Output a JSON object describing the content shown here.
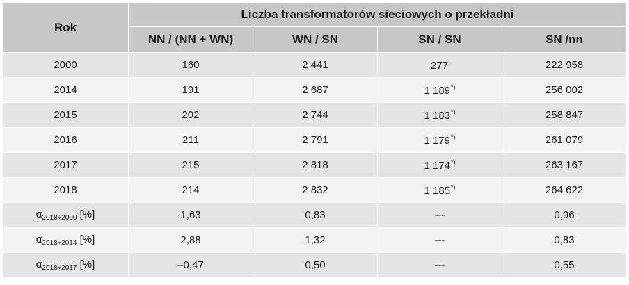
{
  "table": {
    "corner_label": "Rok",
    "group_title": "Liczba transformatorów sieciowych o przekładni",
    "columns": [
      "NN / (NN + WN)",
      "WN / SN",
      "SN / SN",
      "SN /nn"
    ],
    "rows": [
      {
        "year": "2000",
        "c1": "160",
        "c2": "2 441",
        "c3": "277",
        "c3_note": "",
        "c4": "222 958"
      },
      {
        "year": "2014",
        "c1": "191",
        "c2": "2 687",
        "c3": "1 189",
        "c3_note": "*)",
        "c4": "256 002"
      },
      {
        "year": "2015",
        "c1": "202",
        "c2": "2 744",
        "c3": "1 183",
        "c3_note": "*)",
        "c4": "258 847"
      },
      {
        "year": "2016",
        "c1": "211",
        "c2": "2 791",
        "c3": "1 179",
        "c3_note": "*)",
        "c4": "261 079"
      },
      {
        "year": "2017",
        "c1": "215",
        "c2": "2 818",
        "c3": "1 174",
        "c3_note": "*)",
        "c4": "263 167"
      },
      {
        "year": "2018",
        "c1": "214",
        "c2": "2 832",
        "c3": "1 185",
        "c3_note": "*)",
        "c4": "264 622"
      }
    ],
    "alpha_rows": [
      {
        "symbol": "α",
        "sub": "2018÷2000",
        "unit": " [%]",
        "c1": "1,63",
        "c2": "0,83",
        "c3": "---",
        "c4": "0,96"
      },
      {
        "symbol": "α",
        "sub": "2018÷2014",
        "unit": " [%]",
        "c1": "2,88",
        "c2": "1,32",
        "c3": "---",
        "c4": "0,83"
      },
      {
        "symbol": "α",
        "sub": "2018÷2017",
        "unit": " [%]",
        "c1": "–0,47",
        "c2": "0,50",
        "c3": "---",
        "c4": "0,55"
      }
    ]
  },
  "colors": {
    "header_bg": "#c6c7c9",
    "row_odd_bg": "#e4e5e7",
    "row_even_bg": "#f2f3f4",
    "grid_line": "#ffffff"
  }
}
